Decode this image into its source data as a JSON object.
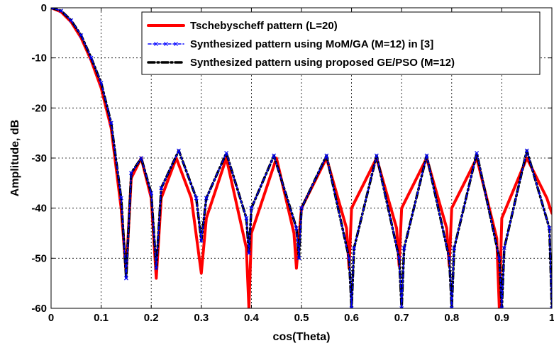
{
  "chart_data": {
    "type": "line",
    "xlabel": "cos(Theta)",
    "ylabel": "Amplitude, dB",
    "xlim": [
      0,
      1
    ],
    "ylim": [
      -60,
      0
    ],
    "xticks": [
      "0",
      "0.1",
      "0.2",
      "0.3",
      "0.4",
      "0.5",
      "0.6",
      "0.7",
      "0.8",
      "0.9",
      "1"
    ],
    "yticks": [
      "0",
      "-10",
      "-20",
      "-30",
      "-40",
      "-50",
      "-60"
    ],
    "grid": true,
    "legend_position": "top-right",
    "series": [
      {
        "name": "Tschebyscheff pattern (L=20)",
        "color": "#ff0000",
        "style": "solid-thick",
        "x": [
          0,
          0.02,
          0.04,
          0.06,
          0.08,
          0.1,
          0.12,
          0.14,
          0.15,
          0.16,
          0.18,
          0.2,
          0.21,
          0.22,
          0.25,
          0.28,
          0.3,
          0.31,
          0.35,
          0.39,
          0.395,
          0.4,
          0.45,
          0.485,
          0.49,
          0.5,
          0.55,
          0.59,
          0.595,
          0.6,
          0.65,
          0.69,
          0.695,
          0.7,
          0.75,
          0.79,
          0.795,
          0.8,
          0.85,
          0.89,
          0.895,
          0.9,
          0.95,
          0.99,
          1.0
        ],
        "values": [
          0,
          -0.8,
          -2.8,
          -6,
          -10.5,
          -16,
          -24,
          -40,
          -53,
          -34,
          -30,
          -38,
          -54,
          -38,
          -30,
          -38,
          -53,
          -42,
          -30,
          -48,
          -60,
          -45,
          -30,
          -45,
          -52,
          -40,
          -30,
          -44,
          -52,
          -40,
          -30,
          -44,
          -51.5,
          -40,
          -30,
          -44,
          -51.5,
          -40,
          -30,
          -46,
          -60,
          -42,
          -30,
          -38,
          -41
        ]
      },
      {
        "name": "Synthesized pattern using MoM/GA (M=12) in [3]",
        "color": "#0000ff",
        "style": "dashed-markers",
        "x": [
          0,
          0.02,
          0.04,
          0.06,
          0.08,
          0.1,
          0.12,
          0.14,
          0.15,
          0.16,
          0.18,
          0.2,
          0.21,
          0.22,
          0.255,
          0.29,
          0.3,
          0.31,
          0.35,
          0.39,
          0.395,
          0.4,
          0.445,
          0.49,
          0.495,
          0.5,
          0.55,
          0.595,
          0.6,
          0.605,
          0.65,
          0.695,
          0.7,
          0.705,
          0.75,
          0.795,
          0.8,
          0.805,
          0.85,
          0.895,
          0.9,
          0.905,
          0.95,
          0.995,
          1.0
        ],
        "values": [
          0,
          -0.6,
          -2.5,
          -5.5,
          -10,
          -15,
          -23,
          -38,
          -54,
          -33,
          -30,
          -37,
          -52,
          -36,
          -28.5,
          -38,
          -46.5,
          -38,
          -29,
          -42,
          -49,
          -40,
          -29.5,
          -44,
          -50,
          -40,
          -29.5,
          -50,
          -60,
          -48,
          -29.5,
          -50,
          -60,
          -48,
          -29.5,
          -50,
          -60,
          -48,
          -29,
          -50,
          -60,
          -48,
          -28.5,
          -44,
          -60
        ]
      },
      {
        "name": "Synthesized pattern using proposed GE/PSO (M=12)",
        "color": "#000000",
        "style": "dashdot-thick",
        "x": [
          0,
          0.02,
          0.04,
          0.06,
          0.08,
          0.1,
          0.12,
          0.14,
          0.15,
          0.16,
          0.18,
          0.2,
          0.21,
          0.22,
          0.255,
          0.29,
          0.3,
          0.31,
          0.35,
          0.39,
          0.395,
          0.4,
          0.445,
          0.49,
          0.495,
          0.5,
          0.55,
          0.595,
          0.6,
          0.605,
          0.65,
          0.695,
          0.7,
          0.705,
          0.75,
          0.795,
          0.8,
          0.805,
          0.85,
          0.895,
          0.9,
          0.905,
          0.95,
          0.995,
          1.0
        ],
        "values": [
          0,
          -0.6,
          -2.5,
          -5.5,
          -10,
          -15,
          -23,
          -38,
          -54,
          -33,
          -30,
          -37,
          -52,
          -36,
          -28.5,
          -38,
          -46.5,
          -38,
          -29,
          -42,
          -49,
          -40,
          -29.5,
          -44,
          -50,
          -40,
          -29.5,
          -50,
          -60,
          -48,
          -29.5,
          -50,
          -60,
          -48,
          -29.5,
          -50,
          -60,
          -48,
          -29,
          -50,
          -60,
          -48,
          -28.5,
          -44,
          -60
        ]
      }
    ]
  }
}
